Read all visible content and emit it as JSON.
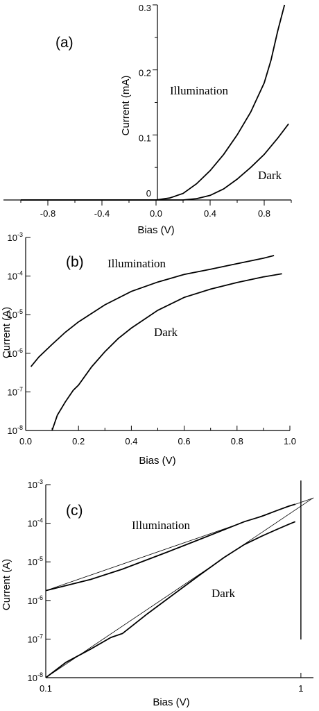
{
  "chart_data": [
    {
      "panel_label": "(a)",
      "type": "line",
      "xlabel": "Bias (V)",
      "ylabel": "Current (mA)",
      "xlim": [
        -1.0,
        1.0
      ],
      "ylim": [
        0,
        0.3
      ],
      "xticks": [
        -0.8,
        -0.4,
        0.0,
        0.4,
        0.8
      ],
      "xtick_labels": [
        "-0.8",
        "-0.4",
        "0.0",
        "0.4",
        "0.8"
      ],
      "yticks": [
        0,
        0.1,
        0.2,
        0.3
      ],
      "ytick_labels": [
        "0",
        "0.1",
        "0.2",
        "0.3"
      ],
      "series": [
        {
          "name": "Illumination",
          "x": [
            -1.0,
            0.0,
            0.1,
            0.2,
            0.3,
            0.4,
            0.5,
            0.6,
            0.7,
            0.8,
            0.85,
            0.9,
            0.95
          ],
          "y": [
            0.0,
            0.0,
            0.003,
            0.01,
            0.025,
            0.045,
            0.07,
            0.1,
            0.135,
            0.18,
            0.215,
            0.26,
            0.3
          ]
        },
        {
          "name": "Dark",
          "x": [
            -1.0,
            0.0,
            0.2,
            0.3,
            0.4,
            0.5,
            0.6,
            0.7,
            0.8,
            0.9,
            0.98
          ],
          "y": [
            0.0,
            0.0,
            0.0,
            0.002,
            0.007,
            0.017,
            0.032,
            0.05,
            0.07,
            0.095,
            0.117
          ]
        }
      ],
      "annotations": [
        "Illumination",
        "Dark"
      ]
    },
    {
      "panel_label": "(b)",
      "type": "line",
      "xlabel": "Bias (V)",
      "ylabel": "Current (A)",
      "y_scale": "log",
      "xlim": [
        0.0,
        1.0
      ],
      "ylim": [
        1e-08,
        0.001
      ],
      "xticks": [
        0.0,
        0.2,
        0.4,
        0.6,
        0.8,
        1.0
      ],
      "xtick_labels": [
        "0.0",
        "0.2",
        "0.4",
        "0.6",
        "0.8",
        "1.0"
      ],
      "yticks_exp": [
        -8,
        -7,
        -6,
        -5,
        -4,
        -3
      ],
      "ytick_base": "10",
      "series": [
        {
          "name": "Illumination",
          "x": [
            0.02,
            0.05,
            0.1,
            0.15,
            0.2,
            0.3,
            0.4,
            0.5,
            0.6,
            0.7,
            0.8,
            0.9,
            0.94
          ],
          "y": [
            4.5e-07,
            8e-07,
            1.7e-06,
            3.5e-06,
            6.5e-06,
            1.8e-05,
            4e-05,
            7e-05,
            0.00011,
            0.00015,
            0.00021,
            0.00029,
            0.00034
          ]
        },
        {
          "name": "Dark",
          "x": [
            0.1,
            0.12,
            0.15,
            0.18,
            0.2,
            0.25,
            0.3,
            0.35,
            0.4,
            0.5,
            0.6,
            0.7,
            0.8,
            0.9,
            0.97
          ],
          "y": [
            1e-08,
            2.5e-08,
            5.5e-08,
            1.1e-07,
            1.5e-07,
            4.5e-07,
            1.1e-06,
            2.4e-06,
            4.5e-06,
            1.3e-05,
            2.8e-05,
            4.6e-05,
            6.8e-05,
            9.5e-05,
            0.000115
          ]
        }
      ],
      "annotations": [
        "Illumination",
        "Dark"
      ]
    },
    {
      "panel_label": "(c)",
      "type": "line",
      "xlabel": "Bias (V)",
      "ylabel": "Current (A)",
      "x_scale": "log",
      "y_scale": "log",
      "xlim": [
        0.1,
        1.12
      ],
      "ylim": [
        1e-08,
        0.001
      ],
      "xticks": [
        0.1,
        1
      ],
      "xtick_labels": [
        "0.1",
        "1"
      ],
      "yticks_exp": [
        -8,
        -7,
        -6,
        -5,
        -4,
        -3
      ],
      "ytick_base": "10",
      "vertical_line_x": 1,
      "series": [
        {
          "name": "Illumination",
          "x": [
            0.1,
            0.15,
            0.2,
            0.3,
            0.4,
            0.5,
            0.6,
            0.7,
            0.8,
            0.9,
            0.95
          ],
          "y": [
            1.8e-06,
            3.5e-06,
            6.5e-06,
            1.8e-05,
            3.8e-05,
            6.8e-05,
            0.00011,
            0.00015,
            0.00021,
            0.00028,
            0.00031
          ]
        },
        {
          "name": "Dark",
          "x": [
            0.1,
            0.12,
            0.15,
            0.18,
            0.2,
            0.25,
            0.3,
            0.4,
            0.5,
            0.6,
            0.7,
            0.8,
            0.9,
            0.95
          ],
          "y": [
            1e-08,
            2.5e-08,
            5.5e-08,
            1.1e-07,
            1.4e-07,
            4.5e-07,
            1.1e-06,
            4.5e-06,
            1.3e-05,
            2.8e-05,
            4.6e-05,
            6.8e-05,
            9.5e-05,
            0.00011
          ]
        },
        {
          "name": "Illumination fit",
          "x": [
            0.1,
            1.12
          ],
          "y": [
            1.8e-06,
            0.00045
          ]
        },
        {
          "name": "Dark fit",
          "x": [
            0.1,
            1.12
          ],
          "y": [
            1e-08,
            0.00046
          ]
        }
      ],
      "annotations": [
        "Illumination",
        "Dark"
      ]
    }
  ]
}
